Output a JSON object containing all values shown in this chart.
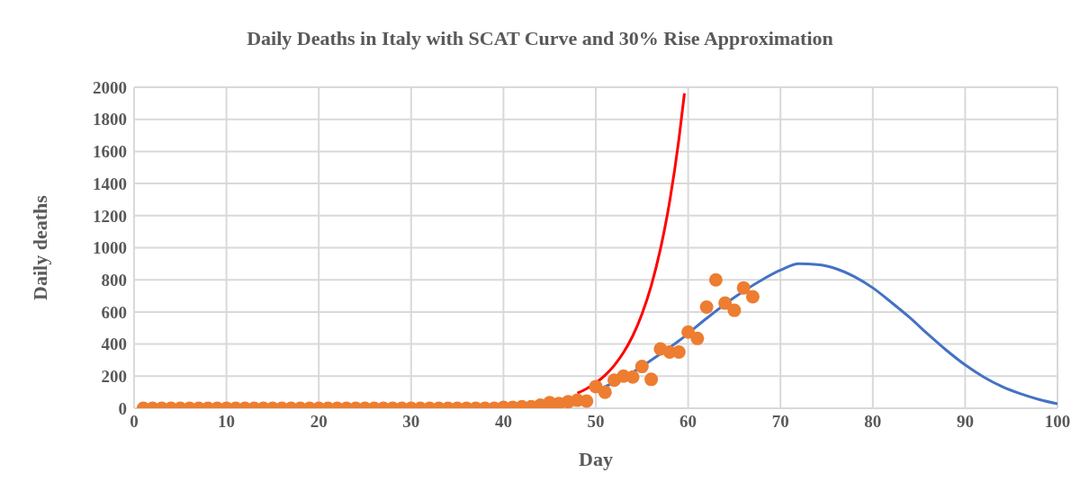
{
  "chart_data": {
    "type": "scatter",
    "title": "Daily Deaths in Italy with SCAT Curve and 30% Rise Approximation",
    "xlabel": "Day",
    "ylabel": "Daily deaths",
    "xlim": [
      0,
      100
    ],
    "xticks": [
      0,
      10,
      20,
      30,
      40,
      50,
      60,
      70,
      80,
      90,
      100
    ],
    "ylim": [
      0,
      2000
    ],
    "yticks": [
      0,
      200,
      400,
      600,
      800,
      1000,
      1200,
      1400,
      1600,
      1800,
      2000
    ],
    "grid": true,
    "series": [
      {
        "type": "line",
        "color": "#4472c4",
        "marker": "none",
        "x": [
          50,
          53,
          56,
          59,
          62,
          65,
          68,
          70,
          72,
          74,
          76,
          78,
          80,
          82,
          84,
          86,
          88,
          90,
          92,
          94,
          96,
          98,
          100
        ],
        "values": [
          110,
          190,
          300,
          420,
          560,
          690,
          800,
          860,
          900,
          895,
          870,
          820,
          750,
          660,
          565,
          460,
          360,
          270,
          195,
          135,
          90,
          55,
          28
        ]
      },
      {
        "type": "line",
        "color": "#ff0000",
        "marker": "none",
        "x": [
          48,
          49,
          50,
          51,
          52,
          53,
          54,
          55,
          56,
          57,
          58,
          59,
          59.6
        ],
        "values": [
          94,
          122,
          158,
          205,
          267,
          347,
          451,
          587,
          763,
          992,
          1289,
          1676,
          1962
        ]
      },
      {
        "color": "#ed7d31",
        "marker": "circle",
        "x": [
          1,
          2,
          3,
          4,
          5,
          6,
          7,
          8,
          9,
          10,
          11,
          12,
          13,
          14,
          15,
          16,
          17,
          18,
          19,
          20,
          21,
          22,
          23,
          24,
          25,
          26,
          27,
          28,
          29,
          30,
          31,
          32,
          33,
          34,
          35,
          36,
          37,
          38,
          39,
          40,
          41,
          42,
          43,
          44,
          45,
          46,
          47,
          48,
          49,
          50,
          51,
          52,
          53,
          54,
          55,
          56,
          57,
          58,
          59,
          60,
          61,
          62,
          63,
          64,
          65,
          66,
          67
        ],
        "values": [
          0,
          0,
          0,
          0,
          0,
          0,
          0,
          0,
          0,
          0,
          0,
          0,
          0,
          0,
          0,
          0,
          0,
          0,
          0,
          0,
          0,
          0,
          0,
          0,
          0,
          0,
          0,
          0,
          0,
          0,
          0,
          0,
          0,
          0,
          0,
          0,
          0,
          0,
          0,
          5,
          5,
          10,
          10,
          20,
          35,
          30,
          40,
          50,
          45,
          135,
          100,
          175,
          200,
          195,
          260,
          180,
          370,
          350,
          350,
          475,
          435,
          630,
          800,
          655,
          610,
          750,
          695
        ]
      }
    ]
  }
}
